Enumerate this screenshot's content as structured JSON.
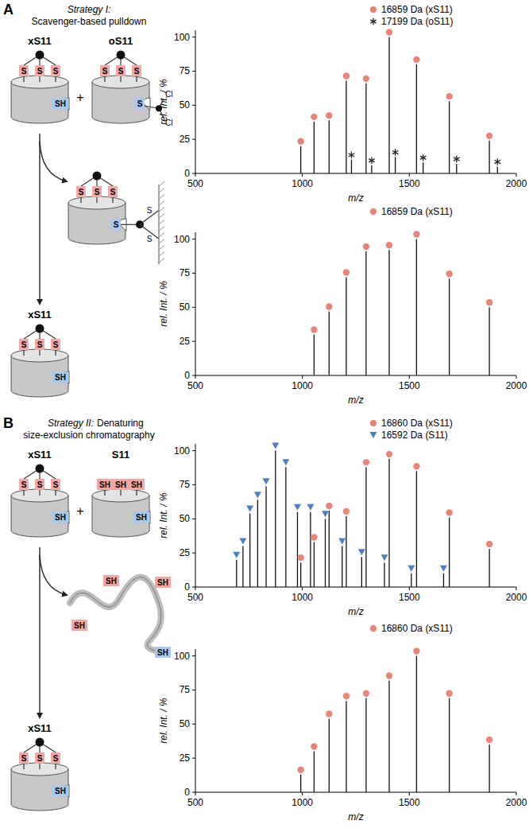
{
  "chart_data": [
    {
      "type": "stem",
      "x_label": "m/z",
      "y_label": "rel. Int. / %",
      "xlim": [
        500,
        2000
      ],
      "xticks": [
        500,
        1000,
        1500,
        2000
      ],
      "ylim": [
        0,
        105
      ],
      "yticks": [
        0,
        25,
        50,
        75,
        100
      ],
      "series": [
        {
          "name": "16859 Da (xS11)",
          "color": "#e8857b",
          "marker": "circle",
          "x": [
            992.7,
            1054.7,
            1124.9,
            1205.2,
            1297.9,
            1405.9,
            1533.6,
            1686.9,
            1874.2
          ],
          "values": [
            20,
            38,
            39,
            68,
            66,
            100,
            80,
            53,
            24
          ]
        },
        {
          "name": "17199 Da (oS11)",
          "color": "#222222",
          "marker": "asterisk",
          "x": [
            1229.5,
            1324.0,
            1434.3,
            1564.5,
            1720.9,
            1912.0
          ],
          "values": [
            10,
            6,
            12,
            8,
            7,
            5
          ]
        }
      ]
    },
    {
      "type": "stem",
      "x_label": "m/z",
      "y_label": "rel. Int. / %",
      "xlim": [
        500,
        2000
      ],
      "xticks": [
        500,
        1000,
        1500,
        2000
      ],
      "ylim": [
        0,
        105
      ],
      "yticks": [
        0,
        25,
        50,
        75,
        100
      ],
      "series": [
        {
          "name": "16859 Da (xS11)",
          "color": "#e8857b",
          "marker": "circle",
          "x": [
            1054.7,
            1124.9,
            1205.2,
            1297.9,
            1405.9,
            1533.6,
            1686.9,
            1874.2
          ],
          "values": [
            30,
            47,
            72,
            91,
            92,
            100,
            71,
            50
          ]
        }
      ]
    },
    {
      "type": "stem",
      "x_label": "m/z",
      "y_label": "rel. Int. / %",
      "xlim": [
        500,
        2000
      ],
      "xticks": [
        500,
        1000,
        1500,
        2000
      ],
      "ylim": [
        0,
        105
      ],
      "yticks": [
        0,
        25,
        50,
        75,
        100
      ],
      "series": [
        {
          "name": "16860 Da (xS11)",
          "color": "#e8857b",
          "marker": "circle",
          "x": [
            992.7,
            1054.8,
            1125.0,
            1205.3,
            1298.0,
            1406.0,
            1533.7,
            1687.0,
            1874.3
          ],
          "values": [
            18,
            33,
            56,
            52,
            88,
            94,
            85,
            51,
            28
          ]
        },
        {
          "name": "16592 Da (S11)",
          "color": "#4f7fc0",
          "marker": "triangle",
          "x": [
            692.3,
            722.4,
            755.2,
            791.1,
            830.6,
            874.3,
            922.8,
            977.0,
            1038.0,
            1107.1,
            1186.1,
            1277.3,
            1383.7,
            1509.4,
            1660.2
          ],
          "values": [
            20,
            30,
            54,
            64,
            74,
            100,
            88,
            55,
            55,
            50,
            30,
            22,
            18,
            10,
            10
          ]
        }
      ]
    },
    {
      "type": "stem",
      "x_label": "m/z",
      "y_label": "rel. Int. / %",
      "xlim": [
        500,
        2000
      ],
      "xticks": [
        500,
        1000,
        1500,
        2000
      ],
      "ylim": [
        0,
        105
      ],
      "yticks": [
        0,
        25,
        50,
        75,
        100
      ],
      "series": [
        {
          "name": "16860 Da (xS11)",
          "color": "#e8857b",
          "marker": "circle",
          "x": [
            992.7,
            1054.8,
            1125.0,
            1205.3,
            1298.0,
            1406.0,
            1533.7,
            1687.0,
            1874.3
          ],
          "values": [
            13,
            30,
            54,
            67,
            69,
            82,
            100,
            69,
            35
          ]
        }
      ]
    }
  ],
  "figure": {
    "panels": [
      {
        "letter": "A",
        "strategy": "Strategy I:",
        "title_lines": [
          "Scavenger-based pulldown"
        ],
        "reactants": [
          "xS11",
          "oS11"
        ],
        "plus": "+",
        "product": "xS11"
      },
      {
        "letter": "B",
        "strategy": "Strategy II:",
        "title_lines": [
          "Denaturing",
          "size-exclusion chromatography"
        ],
        "reactants": [
          "xS11",
          "S11"
        ],
        "plus": "+",
        "product": "xS11"
      }
    ],
    "labels": {
      "thioether": "S",
      "thiol": "SH",
      "chlorine": "Cl"
    }
  }
}
